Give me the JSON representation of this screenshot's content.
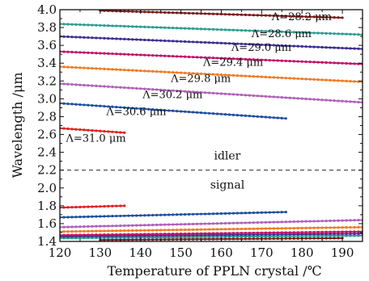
{
  "chart_data": {
    "type": "line",
    "xlabel": "Temperature of PPLN crystal /℃",
    "ylabel": "Wavelength /μm",
    "xlim": [
      120,
      195
    ],
    "ylim": [
      1.4,
      4.0
    ],
    "xticks": [
      "120",
      "130",
      "140",
      "150",
      "160",
      "170",
      "180",
      "190"
    ],
    "yticks": [
      "1.4",
      "1.6",
      "1.8",
      "2.0",
      "2.2",
      "2.4",
      "2.6",
      "2.8",
      "3.0",
      "3.2",
      "3.4",
      "3.6",
      "3.8",
      "4.0"
    ],
    "grid": false,
    "boundary": {
      "y": 2.2,
      "style": "dashed",
      "label_above": "idler",
      "label_below": "signal"
    },
    "series": [
      {
        "name": "Λ=28.2 μm",
        "color": "#7a1a1a",
        "idler": {
          "x": [
            130,
            190
          ],
          "y": [
            3.99,
            3.91
          ]
        },
        "signal": {
          "x": [
            130,
            190
          ],
          "y": [
            1.417,
            1.437
          ]
        }
      },
      {
        "name": "Λ=28.6 μm",
        "color": "#2a9d8f",
        "idler": {
          "x": [
            120,
            195
          ],
          "y": [
            3.84,
            3.72
          ]
        },
        "signal": {
          "x": [
            120,
            195
          ],
          "y": [
            1.437,
            1.465
          ]
        }
      },
      {
        "name": "Λ=29.0 μm",
        "color": "#3b2f8f",
        "idler": {
          "x": [
            120,
            195
          ],
          "y": [
            3.7,
            3.56
          ]
        },
        "signal": {
          "x": [
            120,
            195
          ],
          "y": [
            1.455,
            1.488
          ]
        }
      },
      {
        "name": "Λ=29.4 μm",
        "color": "#c0106a",
        "idler": {
          "x": [
            120,
            195
          ],
          "y": [
            3.53,
            3.39
          ]
        },
        "signal": {
          "x": [
            120,
            195
          ],
          "y": [
            1.47,
            1.51
          ]
        }
      },
      {
        "name": "Λ=29.8 μm",
        "color": "#f07b22",
        "idler": {
          "x": [
            120,
            195
          ],
          "y": [
            3.36,
            3.19
          ]
        },
        "signal": {
          "x": [
            120,
            195
          ],
          "y": [
            1.51,
            1.56
          ]
        }
      },
      {
        "name": "Λ=30.2 μm",
        "color": "#b060b8",
        "idler": {
          "x": [
            120,
            195
          ],
          "y": [
            3.17,
            2.96
          ]
        },
        "signal": {
          "x": [
            120,
            195
          ],
          "y": [
            1.56,
            1.64
          ]
        }
      },
      {
        "name": "Λ=30.6 μm",
        "color": "#1f4fa0",
        "idler": {
          "x": [
            120,
            176
          ],
          "y": [
            2.95,
            2.78
          ]
        },
        "signal": {
          "x": [
            120,
            176
          ],
          "y": [
            1.67,
            1.73
          ]
        }
      },
      {
        "name": "Λ=31.0 μm",
        "color": "#e02020",
        "idler": {
          "x": [
            120,
            136
          ],
          "y": [
            2.67,
            2.62
          ]
        },
        "signal": {
          "x": [
            120,
            136
          ],
          "y": [
            1.78,
            1.8
          ]
        }
      }
    ],
    "annotations": [
      {
        "text": "Λ=28.2 μm",
        "x": 172.5,
        "y": 3.88
      },
      {
        "text": "Λ=28.6 μm",
        "x": 167.5,
        "y": 3.69
      },
      {
        "text": "Λ=29.0 μm",
        "x": 162.5,
        "y": 3.54
      },
      {
        "text": "Λ=29.4 μm",
        "x": 155.5,
        "y": 3.37
      },
      {
        "text": "Λ=29.8 μm",
        "x": 147.5,
        "y": 3.19
      },
      {
        "text": "Λ=30.2 μm",
        "x": 140.5,
        "y": 3.01
      },
      {
        "text": "Λ=30.6 μm",
        "x": 131.5,
        "y": 2.82
      },
      {
        "text": "Λ=31.0 μm",
        "x": 121.5,
        "y": 2.52
      }
    ]
  }
}
